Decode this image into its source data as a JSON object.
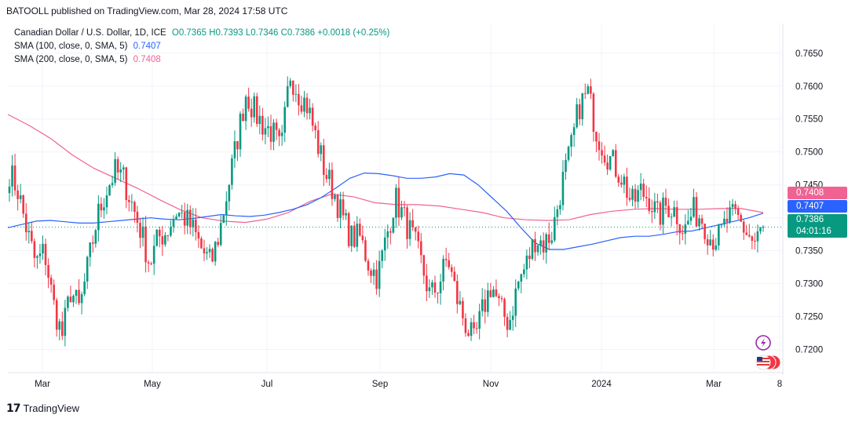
{
  "header": {
    "published_by": "BATOOLL published on TradingView.com, Mar 28, 2024 17:58 UTC"
  },
  "legend": {
    "symbol": "Canadian Dollar / U.S. Dollar, 1D, ICE",
    "ohlc": "O0.7365 H0.7393 L0.7346 C0.7386 +0.0018 (+0.25%)",
    "sma100_label": "SMA (100, close, 0, SMA, 5)",
    "sma100_value": "0.7407",
    "sma200_label": "SMA (200, close, 0, SMA, 5)",
    "sma200_value": "0.7408"
  },
  "badges": {
    "sma200": "0.7408",
    "sma100": "0.7407",
    "last_price": "0.7386",
    "countdown": "04:01:16"
  },
  "footer": {
    "brand": "TradingView"
  },
  "colors": {
    "up": "#089981",
    "down": "#f23645",
    "sma100": "#2962ff",
    "sma200": "#f06292",
    "grid": "#f0f3fa"
  },
  "chart_data": {
    "type": "candlestick",
    "y_ticks": [
      "0.7650",
      "0.7600",
      "0.7550",
      "0.7500",
      "0.7450",
      "0.7400",
      "0.7350",
      "0.7300",
      "0.7250",
      "0.7200"
    ],
    "x_ticks": [
      "Mar",
      "May",
      "Jul",
      "Sep",
      "Nov",
      "2024",
      "Mar",
      "8"
    ],
    "ylim": [
      0.7165,
      0.7695
    ],
    "last_close": 0.7386,
    "close_path": [
      0.747,
      0.744,
      0.738,
      0.733,
      0.735,
      0.727,
      0.722,
      0.729,
      0.726,
      0.733,
      0.74,
      0.744,
      0.747,
      0.746,
      0.742,
      0.738,
      0.733,
      0.737,
      0.738,
      0.741,
      0.74,
      0.738,
      0.735,
      0.733,
      0.738,
      0.745,
      0.752,
      0.759,
      0.756,
      0.754,
      0.753,
      0.75,
      0.762,
      0.759,
      0.757,
      0.752,
      0.747,
      0.744,
      0.74,
      0.737,
      0.737,
      0.733,
      0.731,
      0.737,
      0.743,
      0.74,
      0.737,
      0.733,
      0.728,
      0.73,
      0.734,
      0.728,
      0.724,
      0.721,
      0.726,
      0.73,
      0.726,
      0.724,
      0.73,
      0.733,
      0.737,
      0.736,
      0.738,
      0.745,
      0.75,
      0.757,
      0.759,
      0.753,
      0.75,
      0.748,
      0.746,
      0.742,
      0.744,
      0.743,
      0.74,
      0.742,
      0.741,
      0.738,
      0.741,
      0.74,
      0.737,
      0.737,
      0.74,
      0.74,
      0.738,
      0.736,
      0.7386
    ],
    "sma100": [
      0.7385,
      0.739,
      0.7395,
      0.7396,
      0.7394,
      0.7392,
      0.7392,
      0.7394,
      0.7396,
      0.7398,
      0.74,
      0.7398,
      0.7397,
      0.7399,
      0.7402,
      0.7405,
      0.7403,
      0.7402,
      0.7404,
      0.7408,
      0.7413,
      0.742,
      0.7431,
      0.7445,
      0.746,
      0.7468,
      0.7467,
      0.7464,
      0.746,
      0.746,
      0.7462,
      0.7467,
      0.7465,
      0.745,
      0.743,
      0.741,
      0.7385,
      0.7362,
      0.7352,
      0.7352,
      0.7356,
      0.736,
      0.7365,
      0.737,
      0.7372,
      0.7372,
      0.7375,
      0.7379,
      0.738,
      0.7385,
      0.739,
      0.7395,
      0.74,
      0.7407
    ],
    "sma200": [
      0.7557,
      0.754,
      0.752,
      0.7495,
      0.7475,
      0.746,
      0.7445,
      0.7428,
      0.7412,
      0.74,
      0.7395,
      0.7393,
      0.7398,
      0.7408,
      0.7425,
      0.7436,
      0.7432,
      0.7423,
      0.742,
      0.742,
      0.7418,
      0.7413,
      0.7408,
      0.74,
      0.7397,
      0.7396,
      0.7397,
      0.7405,
      0.741,
      0.7413,
      0.7414,
      0.7413,
      0.7413,
      0.7414,
      0.7414,
      0.7408
    ]
  }
}
